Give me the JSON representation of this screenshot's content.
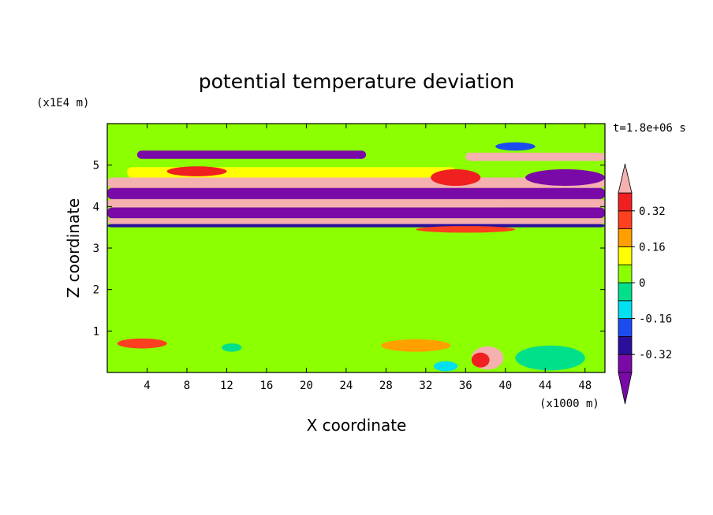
{
  "chart_data": {
    "type": "heatmap",
    "title": "potential temperature deviation",
    "xlabel": "X coordinate",
    "ylabel": "Z coordinate",
    "x_unit_label": "(x1000 m)",
    "y_unit_label": "(x1E4 m)",
    "time_label": "t=1.8e+06 s",
    "xlim": [
      0,
      50
    ],
    "ylim": [
      0,
      6
    ],
    "x_ticks": [
      4,
      8,
      12,
      16,
      20,
      24,
      28,
      32,
      36,
      40,
      44,
      48
    ],
    "x_tick_labels": [
      "4",
      "8",
      "12",
      "16",
      "20",
      "24",
      "28",
      "32",
      "36",
      "40",
      "44",
      "48"
    ],
    "y_ticks": [
      1,
      2,
      3,
      4,
      5
    ],
    "y_tick_labels": [
      "1",
      "2",
      "3",
      "4",
      "5"
    ],
    "colorbar": {
      "levels": [
        -0.4,
        -0.32,
        -0.24,
        -0.16,
        -0.08,
        0,
        0.08,
        0.16,
        0.24,
        0.32,
        0.4
      ],
      "labels": [
        "0.32",
        "0.16",
        "0",
        "-0.16",
        "-0.32"
      ],
      "label_values": [
        0.32,
        0.16,
        0,
        -0.16,
        -0.32
      ],
      "colors": [
        "#7a0aa8",
        "#2b0f9c",
        "#1a4cf0",
        "#00e0f0",
        "#00e08a",
        "#8cff00",
        "#ffff00",
        "#ffa000",
        "#ff4020",
        "#f02020",
        "#f5b0b0"
      ],
      "extend": "both"
    },
    "bands": [
      {
        "z": [
          0.0,
          0.05
        ],
        "x": [
          0,
          50
        ],
        "level": "0"
      },
      {
        "z": [
          3.5,
          3.58
        ],
        "x": [
          0,
          50
        ],
        "level": "-0.32"
      },
      {
        "z": [
          3.58,
          3.72
        ],
        "x": [
          0,
          50
        ],
        "level": "> 0.4"
      },
      {
        "z": [
          3.72,
          3.98
        ],
        "x": [
          0,
          50
        ],
        "level": "< -0.4"
      },
      {
        "z": [
          3.98,
          4.18
        ],
        "x": [
          0,
          50
        ],
        "level": "> 0.4"
      },
      {
        "z": [
          4.18,
          4.45
        ],
        "x": [
          0,
          50
        ],
        "level": "< -0.4"
      },
      {
        "z": [
          4.45,
          4.7
        ],
        "x": [
          0,
          50
        ],
        "level": "> 0.4"
      },
      {
        "z": [
          4.7,
          4.95
        ],
        "x": [
          2,
          35
        ],
        "level": "0.08"
      },
      {
        "z": [
          5.15,
          5.35
        ],
        "x": [
          3,
          26
        ],
        "level": "< -0.4"
      },
      {
        "z": [
          5.1,
          5.3
        ],
        "x": [
          36,
          50
        ],
        "level": "> 0.4"
      }
    ],
    "blobs": [
      {
        "x": 38.2,
        "z": 0.35,
        "rx": 1.6,
        "rz": 0.28,
        "level": "> 0.4"
      },
      {
        "x": 37.5,
        "z": 0.3,
        "rx": 0.9,
        "rz": 0.18,
        "level": "0.32"
      },
      {
        "x": 31.0,
        "z": 0.65,
        "rx": 3.5,
        "rz": 0.15,
        "level": "0.16"
      },
      {
        "x": 34.0,
        "z": 0.15,
        "rx": 1.2,
        "rz": 0.12,
        "level": "-0.16"
      },
      {
        "x": 3.5,
        "z": 0.7,
        "rx": 2.5,
        "rz": 0.12,
        "level": "0.24"
      },
      {
        "x": 44.5,
        "z": 0.35,
        "rx": 3.5,
        "rz": 0.3,
        "level": "-0.08"
      },
      {
        "x": 12.5,
        "z": 0.6,
        "rx": 1.0,
        "rz": 0.1,
        "level": "-0.08"
      },
      {
        "x": 46.0,
        "z": 4.7,
        "rx": 4.0,
        "rz": 0.2,
        "level": "< -0.4"
      },
      {
        "x": 35.0,
        "z": 4.7,
        "rx": 2.5,
        "rz": 0.2,
        "level": "0.32"
      },
      {
        "x": 9.0,
        "z": 4.85,
        "rx": 3.0,
        "rz": 0.12,
        "level": "0.32"
      },
      {
        "x": 41.0,
        "z": 5.45,
        "rx": 2.0,
        "rz": 0.1,
        "level": "-0.24"
      },
      {
        "x": 36.0,
        "z": 3.45,
        "rx": 5.0,
        "rz": 0.08,
        "level": "0.24"
      }
    ]
  }
}
